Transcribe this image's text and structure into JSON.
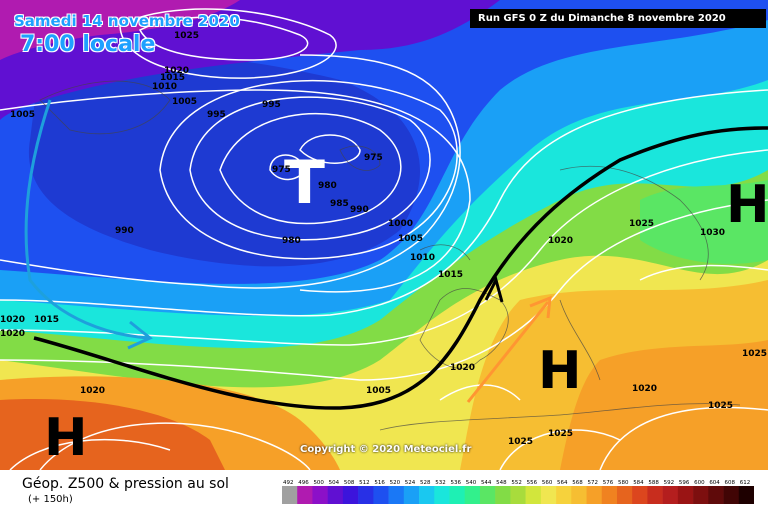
{
  "header": {
    "date": "Samedi 14 novembre 2020",
    "time": "7:00 locale",
    "run": "Run GFS 0 Z du Dimanche 8 novembre 2020"
  },
  "copyright": "Copyright © 2020 Meteociel.fr",
  "footer": {
    "title": "Géop. Z500 & pression au sol",
    "subtitle": "(+ 150h)"
  },
  "pressure_centers": {
    "low": "T",
    "high_southwest": "H",
    "high_mediterranean": "H",
    "high_east": "H"
  },
  "isobar_labels": [
    "1025",
    "1020",
    "1015",
    "1010",
    "1005",
    "1005",
    "995",
    "995",
    "975",
    "975",
    "980",
    "985",
    "990",
    "990",
    "980",
    "1000",
    "1005",
    "1010",
    "1015",
    "1020",
    "1025",
    "1030",
    "1020",
    "1015",
    "1020",
    "1020",
    "1020",
    "1005",
    "1020",
    "1025",
    "1025",
    "1025",
    "1025"
  ],
  "color_scale": {
    "labels": [
      "492",
      "496",
      "500",
      "504",
      "508",
      "512",
      "516",
      "520",
      "524",
      "528",
      "532",
      "536",
      "540",
      "544",
      "548",
      "552",
      "556",
      "560",
      "564",
      "568",
      "572",
      "576",
      "580",
      "584",
      "588",
      "592",
      "596",
      "600",
      "604",
      "608",
      "612"
    ],
    "colors": [
      "#a0a0a0",
      "#b01bb0",
      "#8c10c8",
      "#6010d2",
      "#3c14dc",
      "#2830e6",
      "#1e50f0",
      "#1a78f6",
      "#1aa0f6",
      "#1ac8f0",
      "#1ae6dc",
      "#1ef0b4",
      "#32f08c",
      "#5ae664",
      "#82dc46",
      "#a8dc3c",
      "#d2e63c",
      "#f0e650",
      "#f6d23c",
      "#f6be32",
      "#f6a028",
      "#f08220",
      "#e6641e",
      "#dc461e",
      "#c82d1e",
      "#b41e1e",
      "#9a1414",
      "#7d0f0f",
      "#5f0a0a",
      "#410505",
      "#1e0000"
    ]
  },
  "colors": {
    "arrow_blue": "#1ea0dc",
    "arrow_orange": "#ff9632",
    "jet_line": "#000000"
  }
}
